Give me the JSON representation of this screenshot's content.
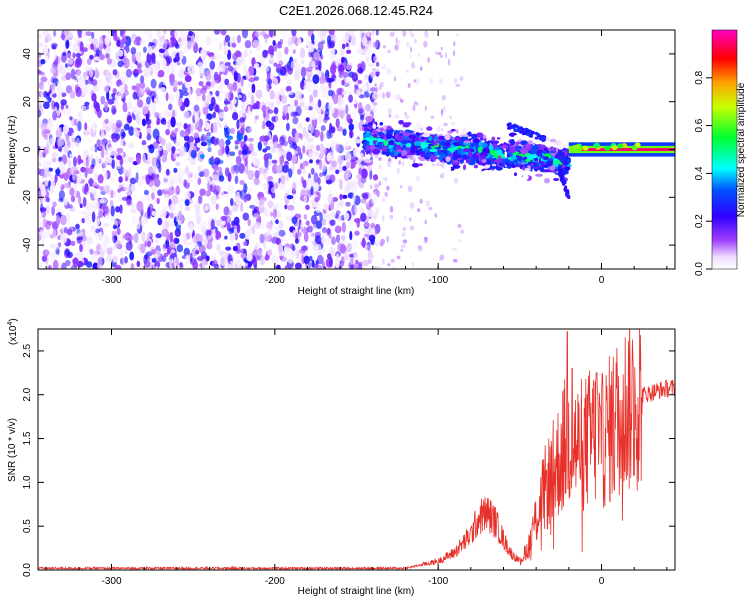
{
  "title": "C2E1.2026.068.12.45.R24",
  "colors": {
    "line": "#e8302a",
    "frame": "#000000"
  },
  "chart_data": [
    {
      "type": "heatmap",
      "title": "C2E1.2026.068.12.45.R24",
      "xlabel": "Height of straight line (km)",
      "ylabel": "Frequency (Hz)",
      "xlim": [
        -345,
        45
      ],
      "ylim": [
        -50,
        50
      ],
      "xticks": [
        -300,
        -200,
        -100,
        0
      ],
      "yticks": [
        -40,
        -20,
        0,
        20,
        40
      ],
      "colorbar": {
        "label": "Normalized spectral amplitude",
        "range": [
          0,
          1
        ],
        "ticks": [
          0.0,
          0.2,
          0.4,
          0.6,
          0.8
        ],
        "tick_labels": [
          "0.0",
          "0.2",
          "0.4",
          "0.6",
          "0.8"
        ],
        "colormap": [
          "#ffffff",
          "#e5ccff",
          "#8000ff",
          "#0000ff",
          "#00ffff",
          "#00ff00",
          "#ffff00",
          "#ff8000",
          "#ff0000",
          "#ff00ff"
        ]
      },
      "regions": [
        {
          "name": "noise",
          "x_range": [
            -345,
            -145
          ],
          "freq_range": [
            -50,
            50
          ],
          "amplitude": 0.1
        },
        {
          "name": "signal-band",
          "x_range": [
            -145,
            -20
          ],
          "freq_center_start": 4,
          "freq_center_end": -5,
          "half_width": 5,
          "amplitude": 0.35
        },
        {
          "name": "echo-line",
          "x_range": [
            -20,
            45
          ],
          "freq_center": 0,
          "half_width": 1.5,
          "amplitude": 0.95
        }
      ]
    },
    {
      "type": "line",
      "xlabel": "Height of straight line (km)",
      "ylabel": "SNR (10 * v/v)",
      "yscale_label": "(x10",
      "yscale_exp": "4",
      "multiplier": 10000,
      "xlim": [
        -345,
        45
      ],
      "ylim": [
        0,
        2.75
      ],
      "xticks": [
        -300,
        -200,
        -100,
        0
      ],
      "yticks": [
        0.0,
        0.5,
        1.0,
        1.5,
        2.0,
        2.5
      ],
      "ytick_labels": [
        "0.0",
        "0.5",
        "1.0",
        "1.5",
        "2.0",
        "2.5"
      ],
      "envelope": {
        "x": [
          -345,
          -120,
          -110,
          -100,
          -90,
          -80,
          -75,
          -70,
          -65,
          -60,
          -55,
          -50,
          -45,
          -40,
          -35,
          -30,
          -25,
          -20,
          -15,
          -10,
          -5,
          0,
          5,
          10,
          15,
          20,
          25,
          30,
          35,
          40,
          45
        ],
        "y": [
          0.02,
          0.02,
          0.06,
          0.1,
          0.2,
          0.4,
          0.6,
          0.65,
          0.55,
          0.35,
          0.18,
          0.1,
          0.25,
          0.6,
          0.9,
          1.1,
          1.3,
          1.55,
          1.4,
          1.45,
          1.55,
          1.45,
          1.6,
          1.75,
          1.85,
          1.95,
          2.0,
          2.02,
          2.05,
          2.07,
          2.08
        ]
      },
      "peaks": [
        {
          "x": -21,
          "y": 2.72
        },
        {
          "x": -3,
          "y": 2.25
        },
        {
          "x": -18,
          "y": 2.3
        }
      ]
    }
  ]
}
